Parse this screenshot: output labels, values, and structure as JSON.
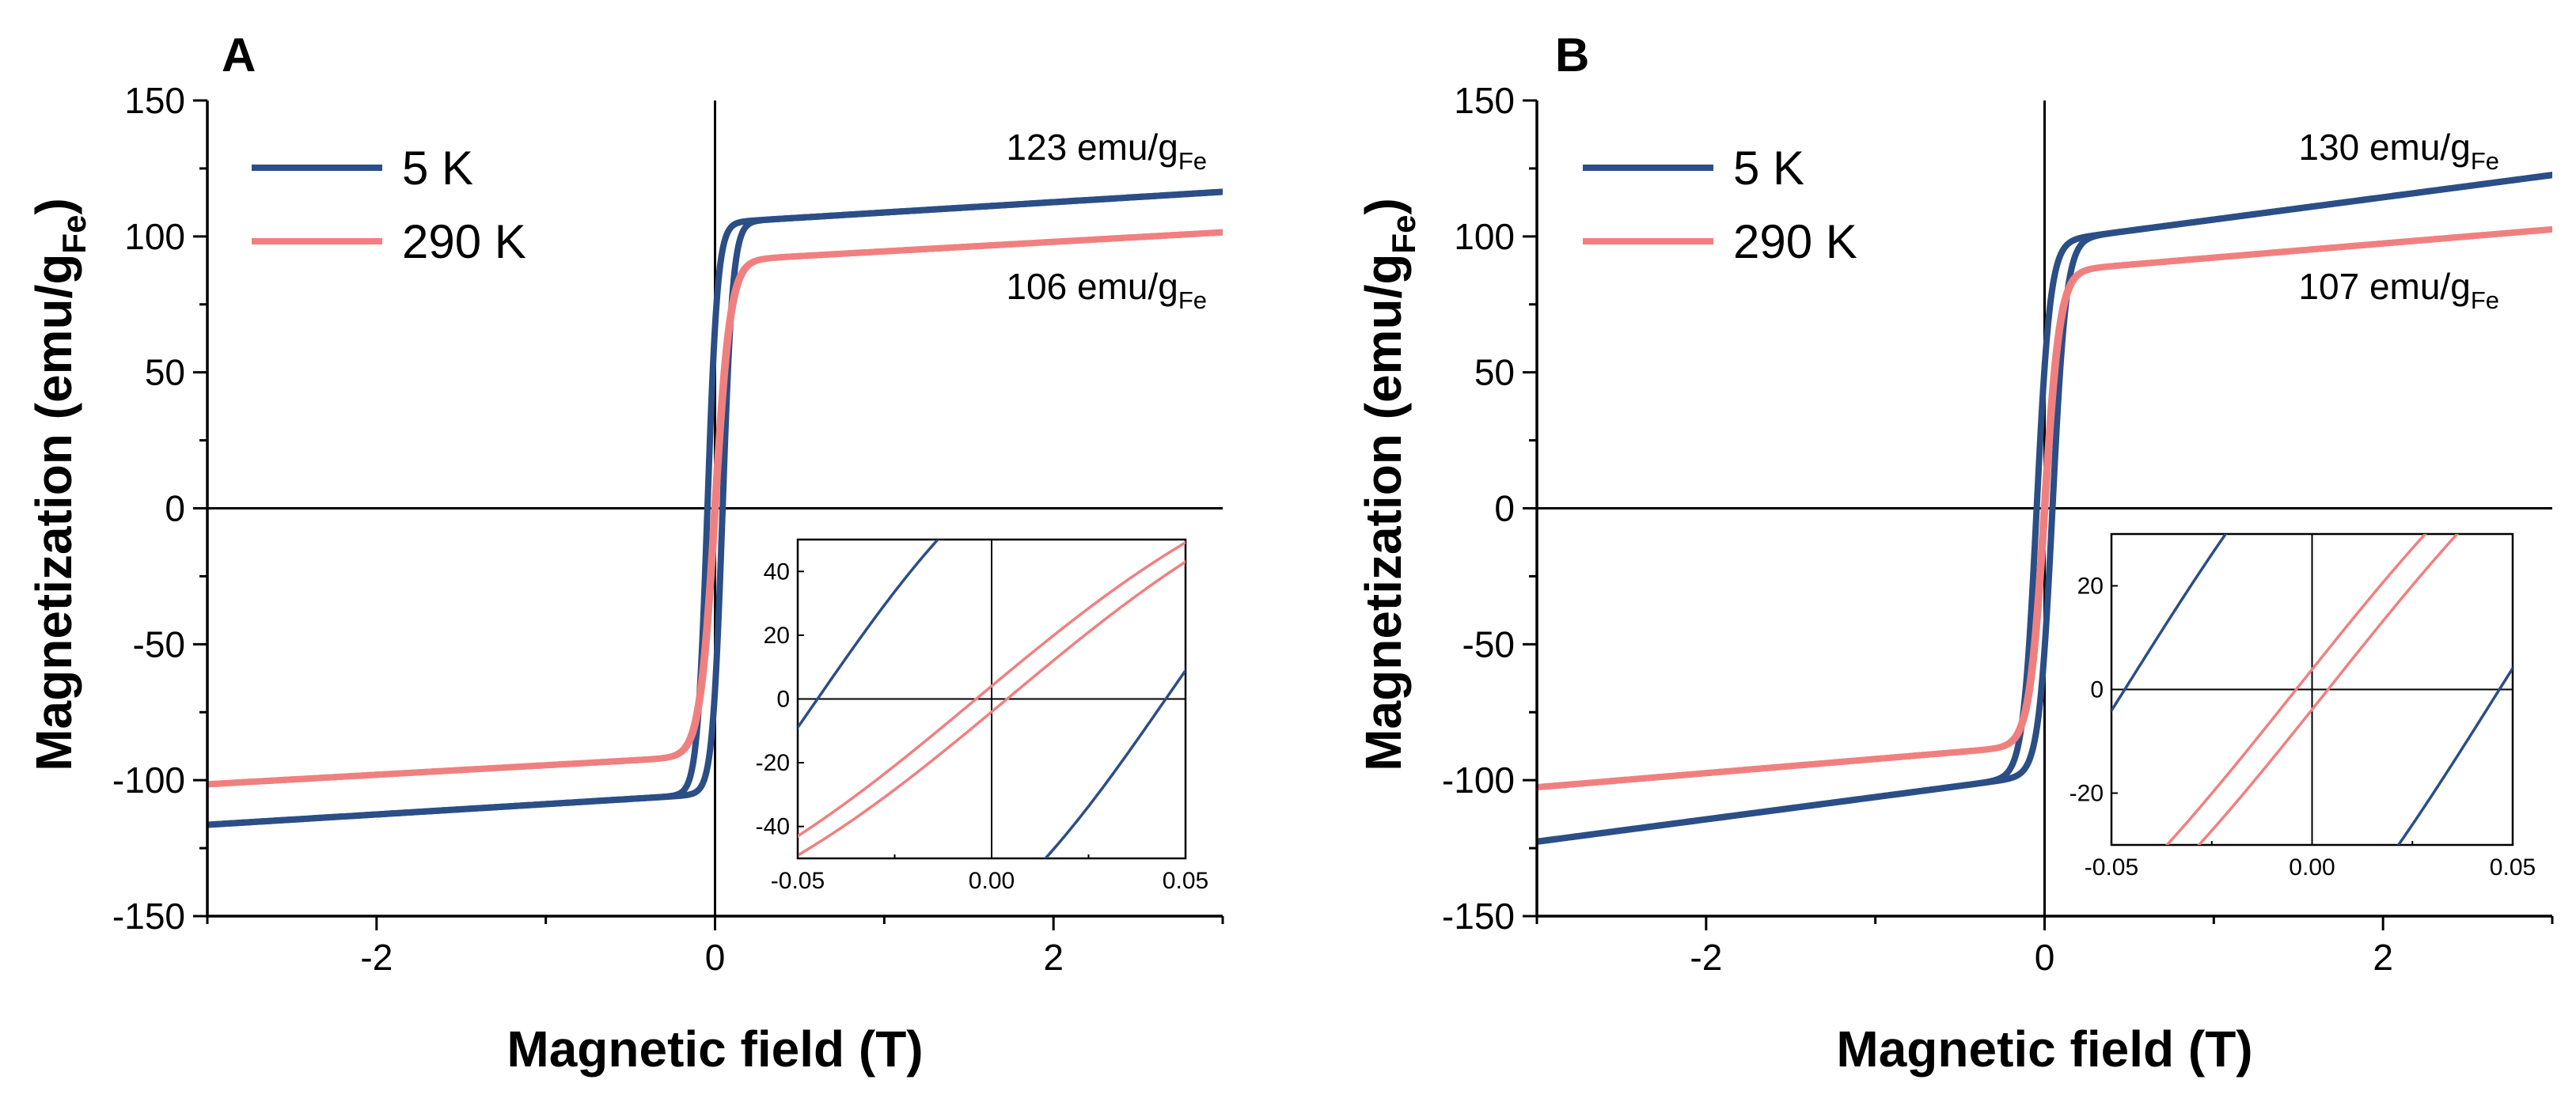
{
  "colors": {
    "low_T": "#2b4e86",
    "high_T": "#f08080",
    "axis": "#000000"
  },
  "chart_data": [
    {
      "panel": "A",
      "type": "line",
      "xlabel": "Magnetic field (T)",
      "ylabel_main": "Magnetization (emu/g",
      "ylabel_sub": "Fe",
      "ylabel_close": ")",
      "xlim": [
        -3,
        3
      ],
      "ylim": [
        -150,
        150
      ],
      "xticks": [
        -2,
        0,
        2
      ],
      "yticks": [
        -150,
        -100,
        -50,
        0,
        50,
        100,
        150
      ],
      "xtick_labels": [
        "-2",
        "0",
        "2"
      ],
      "ytick_labels": [
        "-150",
        "-100",
        "-50",
        "0",
        "50",
        "100",
        "150"
      ],
      "legend": [
        "5 K",
        "290 K"
      ],
      "series": [
        {
          "name": "5 K",
          "ms": 105,
          "hc": 0.045,
          "b": 0.06,
          "chi": 3.8
        },
        {
          "name": "290 K",
          "ms": 91,
          "hc": 0.004,
          "b": 0.09,
          "chi": 3.5
        }
      ],
      "annotations": [
        {
          "main": "123 emu/g",
          "sub": "Fe"
        },
        {
          "main": "106 emu/g",
          "sub": "Fe"
        }
      ],
      "inset": {
        "xlim": [
          -0.05,
          0.05
        ],
        "ylim": [
          -50,
          50
        ],
        "xticks": [
          -0.05,
          0,
          0.05
        ],
        "yticks": [
          -40,
          -20,
          0,
          20,
          40
        ],
        "xtick_labels": [
          "-0.05",
          "0.00",
          "0.05"
        ],
        "ytick_labels": [
          "-40",
          "-20",
          "0",
          "20",
          "40"
        ]
      }
    },
    {
      "panel": "B",
      "type": "line",
      "xlabel": "Magnetic field (T)",
      "ylabel_main": "Magnetization (emu/g",
      "ylabel_sub": "Fe",
      "ylabel_close": ")",
      "xlim": [
        -3,
        3
      ],
      "ylim": [
        -150,
        150
      ],
      "xticks": [
        -2,
        0,
        2
      ],
      "yticks": [
        -150,
        -100,
        -50,
        0,
        50,
        100,
        150
      ],
      "xtick_labels": [
        "-2",
        "0",
        "2"
      ],
      "ytick_labels": [
        "-150",
        "-100",
        "-50",
        "0",
        "50",
        "100",
        "150"
      ],
      "legend": [
        "5 K",
        "290 K"
      ],
      "series": [
        {
          "name": "5 K",
          "ms": 98,
          "hc": 0.047,
          "b": 0.08,
          "chi": 8.2
        },
        {
          "name": "290 K",
          "ms": 87,
          "hc": 0.004,
          "b": 0.09,
          "chi": 5.2
        }
      ],
      "annotations": [
        {
          "main": "130 emu/g",
          "sub": "Fe"
        },
        {
          "main": "107 emu/g",
          "sub": "Fe"
        }
      ],
      "inset": {
        "xlim": [
          -0.05,
          0.05
        ],
        "ylim": [
          -30,
          30
        ],
        "xticks": [
          -0.05,
          0,
          0.05
        ],
        "yticks": [
          -20,
          0,
          20
        ],
        "xtick_labels": [
          "-0.05",
          "0.00",
          "0.05"
        ],
        "ytick_labels": [
          "-20",
          "0",
          "20"
        ]
      }
    }
  ]
}
